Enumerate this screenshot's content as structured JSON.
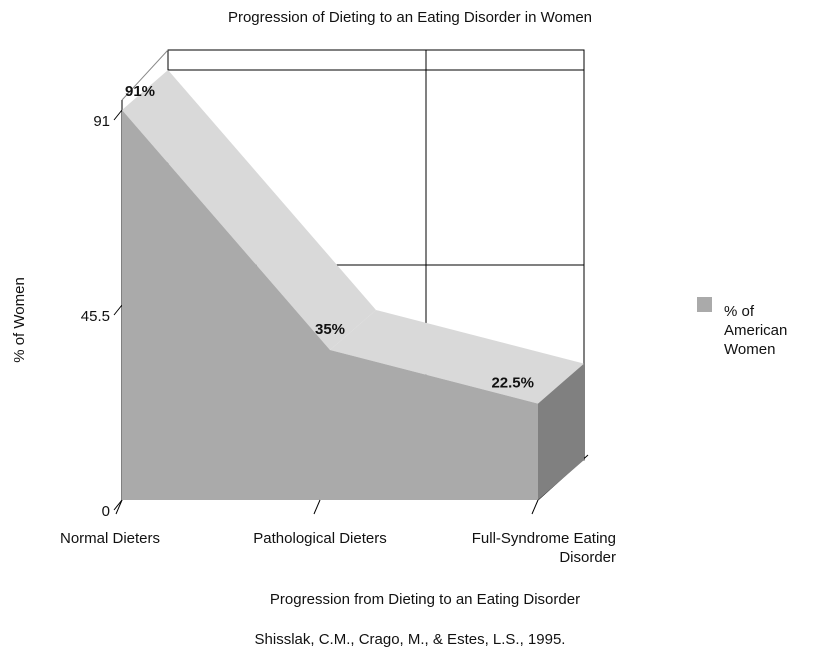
{
  "chart_data": {
    "type": "area3d",
    "title": "Progression of Dieting to an Eating Disorder in Women",
    "x_label": "Progression from Dieting to an Eating Disorder",
    "y_label": "% of Women",
    "source": "Shisslak, C.M., Crago, M., & Estes, L.S., 1995.",
    "categories": [
      "Normal Dieters",
      "Pathological Dieters",
      "Full-Syndrome Eating Disorder"
    ],
    "series": [
      {
        "name": "% of American Women",
        "color": "#aaaaaa",
        "values": [
          91,
          35,
          22.5
        ],
        "value_labels": [
          "91%",
          "35%",
          "22.5%"
        ]
      }
    ],
    "ylim": [
      0,
      91
    ],
    "yticks": [
      0,
      45.5,
      91
    ],
    "grid": true,
    "legend": "right"
  }
}
